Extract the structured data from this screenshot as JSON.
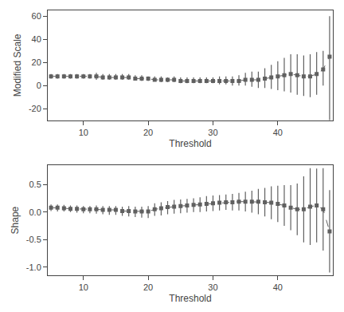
{
  "chart_data": [
    {
      "type": "line",
      "x": [
        5,
        6,
        7,
        8,
        9,
        10,
        11,
        12,
        13,
        14,
        15,
        16,
        17,
        18,
        19,
        20,
        21,
        22,
        23,
        24,
        25,
        26,
        27,
        28,
        29,
        30,
        31,
        32,
        33,
        34,
        35,
        36,
        37,
        38,
        39,
        40,
        41,
        42,
        43,
        44,
        45,
        46,
        47,
        48
      ],
      "series": [
        {
          "color": "#606060",
          "marker": "square",
          "line_style": "dashed",
          "values": [
            8,
            8,
            8,
            8,
            8,
            8,
            8,
            8,
            7,
            7,
            7,
            7,
            7,
            6,
            6,
            6,
            5,
            5,
            5,
            5,
            4,
            4,
            4,
            4,
            4,
            4,
            4,
            4,
            4,
            4,
            5,
            5,
            5,
            6,
            7,
            8,
            9,
            10,
            9,
            8,
            8,
            10,
            14,
            25
          ],
          "lower": [
            6,
            6,
            6,
            6,
            6,
            6,
            6,
            5,
            5,
            5,
            5,
            5,
            5,
            5,
            4,
            4,
            4,
            3,
            3,
            3,
            2,
            2,
            2,
            2,
            2,
            2,
            1,
            1,
            0,
            0,
            0,
            -1,
            -2,
            -2,
            -3,
            -4,
            -5,
            -6,
            -8,
            -9,
            -10,
            -8,
            0,
            -30
          ],
          "upper": [
            10,
            10,
            10,
            10,
            10,
            10,
            10,
            11,
            10,
            10,
            10,
            10,
            10,
            9,
            9,
            8,
            8,
            8,
            7,
            8,
            7,
            7,
            7,
            7,
            7,
            7,
            8,
            8,
            8,
            9,
            11,
            12,
            12,
            15,
            18,
            21,
            24,
            27,
            27,
            26,
            27,
            29,
            30,
            60
          ]
        }
      ],
      "xlabel": "Threshold",
      "ylabel": "Modified Scale",
      "xlim": [
        4.5,
        48.5
      ],
      "xticks": [
        10,
        20,
        30,
        40
      ],
      "ylim": [
        -30,
        65
      ],
      "yticks": [
        -20,
        0,
        20,
        40,
        60
      ],
      "grid": false
    },
    {
      "type": "line",
      "x": [
        5,
        6,
        7,
        8,
        9,
        10,
        11,
        12,
        13,
        14,
        15,
        16,
        17,
        18,
        19,
        20,
        21,
        22,
        23,
        24,
        25,
        26,
        27,
        28,
        29,
        30,
        31,
        32,
        33,
        34,
        35,
        36,
        37,
        38,
        39,
        40,
        41,
        42,
        43,
        44,
        45,
        46,
        47,
        48
      ],
      "series": [
        {
          "color": "#606060",
          "marker": "square",
          "line_style": "dashed",
          "values": [
            0.08,
            0.08,
            0.07,
            0.06,
            0.06,
            0.05,
            0.05,
            0.05,
            0.04,
            0.04,
            0.04,
            0.02,
            0.02,
            0.01,
            0.01,
            0.01,
            0.05,
            0.07,
            0.09,
            0.1,
            0.11,
            0.12,
            0.13,
            0.14,
            0.15,
            0.16,
            0.17,
            0.18,
            0.18,
            0.19,
            0.19,
            0.19,
            0.19,
            0.18,
            0.17,
            0.15,
            0.12,
            0.08,
            0.05,
            0.05,
            0.1,
            0.12,
            0.05,
            -0.35
          ],
          "lower": [
            0.02,
            0.01,
            0.01,
            0.0,
            -0.01,
            -0.02,
            -0.02,
            -0.03,
            -0.04,
            -0.05,
            -0.05,
            -0.07,
            -0.08,
            -0.09,
            -0.1,
            -0.11,
            -0.07,
            -0.06,
            -0.04,
            -0.03,
            -0.02,
            -0.01,
            0.0,
            0.0,
            0.01,
            0.02,
            0.03,
            0.04,
            0.03,
            0.03,
            0.01,
            -0.01,
            -0.04,
            -0.08,
            -0.13,
            -0.18,
            -0.25,
            -0.33,
            -0.42,
            -0.55,
            -0.6,
            -0.55,
            -0.7,
            -1.1
          ],
          "upper": [
            0.14,
            0.14,
            0.13,
            0.12,
            0.12,
            0.11,
            0.11,
            0.12,
            0.11,
            0.11,
            0.11,
            0.1,
            0.11,
            0.1,
            0.1,
            0.11,
            0.16,
            0.18,
            0.2,
            0.22,
            0.23,
            0.24,
            0.25,
            0.27,
            0.29,
            0.3,
            0.31,
            0.32,
            0.33,
            0.35,
            0.37,
            0.39,
            0.42,
            0.44,
            0.47,
            0.48,
            0.49,
            0.49,
            0.52,
            0.65,
            0.8,
            0.79,
            0.8,
            0.4
          ]
        }
      ],
      "xlabel": "Threshold",
      "ylabel": "Shape",
      "xlim": [
        4.5,
        48.5
      ],
      "xticks": [
        10,
        20,
        30,
        40
      ],
      "ylim": [
        -1.15,
        0.85
      ],
      "yticks": [
        {
          "value": -1.0,
          "label": "-1.0"
        },
        -0.5,
        {
          "value": 0.0,
          "label": "0.0"
        },
        0.5
      ],
      "grid": false
    }
  ]
}
